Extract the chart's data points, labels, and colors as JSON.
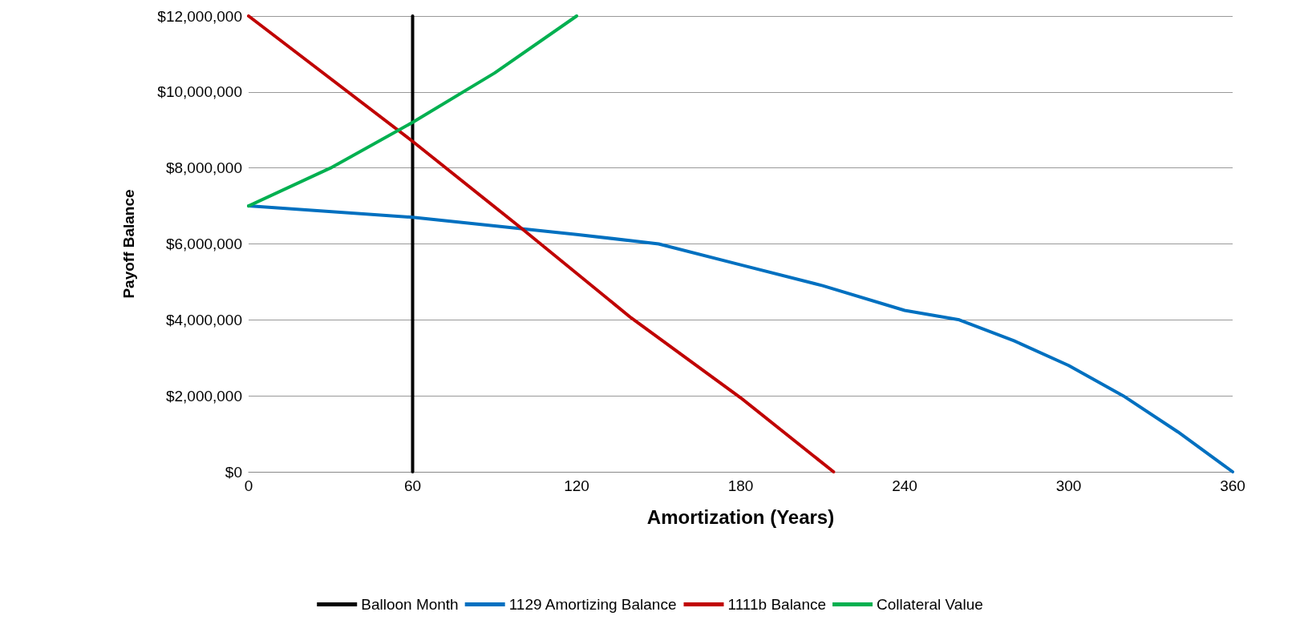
{
  "chart_data": {
    "type": "line",
    "xlabel": "Amortization (Years)",
    "ylabel": "Payoff Balance",
    "xlim": [
      0,
      360
    ],
    "xticks": [
      0,
      60,
      120,
      180,
      240,
      300,
      360
    ],
    "ylim": [
      0,
      12000000
    ],
    "yticks": [
      {
        "value": 0,
        "label": "$0"
      },
      {
        "value": 2000000,
        "label": "$2,000,000"
      },
      {
        "value": 4000000,
        "label": "$4,000,000"
      },
      {
        "value": 6000000,
        "label": "$6,000,000"
      },
      {
        "value": 8000000,
        "label": "$8,000,000"
      },
      {
        "value": 10000000,
        "label": "$10,000,000"
      },
      {
        "value": 12000000,
        "label": "$12,000,000"
      }
    ],
    "grid": "y",
    "legend": "bottom",
    "marker": "none",
    "line_style": "solid",
    "series": [
      {
        "name": "Balloon Month",
        "color": "#000000",
        "x": [
          60,
          60
        ],
        "values": [
          0,
          12000000
        ]
      },
      {
        "name": "1129 Amortizing Balance",
        "color": "#0070c0",
        "x": [
          0,
          60,
          120,
          150,
          180,
          210,
          240,
          260,
          280,
          300,
          320,
          340,
          360
        ],
        "values": [
          7000000,
          6700000,
          6250000,
          6000000,
          5450000,
          4900000,
          4250000,
          4000000,
          3450000,
          2800000,
          2000000,
          1050000,
          0
        ]
      },
      {
        "name": "1111b Balance",
        "color": "#c00000",
        "x": [
          0,
          60,
          100,
          140,
          180,
          214
        ],
        "values": [
          12000000,
          8700000,
          6400000,
          4050000,
          1950000,
          0
        ]
      },
      {
        "name": "Collateral Value",
        "color": "#00b050",
        "x": [
          0,
          30,
          60,
          90,
          120
        ],
        "values": [
          7000000,
          8000000,
          9200000,
          10500000,
          12000000
        ]
      }
    ]
  }
}
